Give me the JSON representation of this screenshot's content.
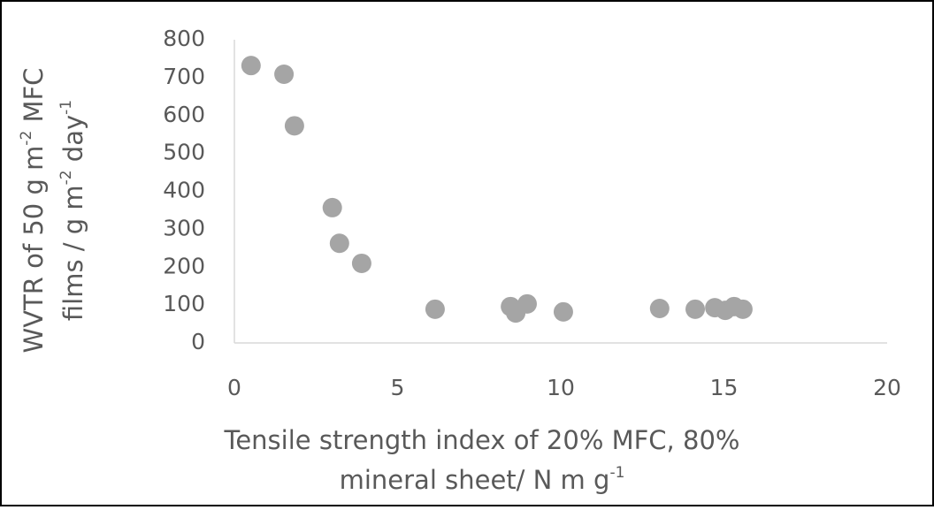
{
  "chart_data": {
    "type": "scatter",
    "xlabel_lines": [
      [
        "Tensile strength index of 20% MFC, 80%"
      ],
      [
        "mineral sheet/ N m g",
        "-1"
      ]
    ],
    "ylabel_lines": [
      [
        "WVTR of 50 g m",
        "-2",
        " MFC"
      ],
      [
        "films / g m",
        "-2",
        "  day",
        "-1"
      ]
    ],
    "x": [
      0.51,
      1.52,
      1.84,
      3.0,
      3.22,
      3.9,
      6.15,
      8.46,
      8.62,
      8.97,
      10.08,
      13.03,
      14.12,
      14.72,
      15.04,
      15.31,
      15.58
    ],
    "values": [
      732,
      709,
      573,
      357,
      263,
      210,
      89,
      96,
      79,
      103,
      82,
      91,
      89,
      93,
      86,
      96,
      89
    ],
    "color": "#a5a5a5",
    "xlim": [
      0,
      20
    ],
    "xticks": [
      0,
      5,
      10,
      15,
      20
    ],
    "ylim": [
      0,
      800
    ],
    "yticks": [
      0,
      100,
      200,
      300,
      400,
      500,
      600,
      700,
      800
    ],
    "grid": false
  }
}
